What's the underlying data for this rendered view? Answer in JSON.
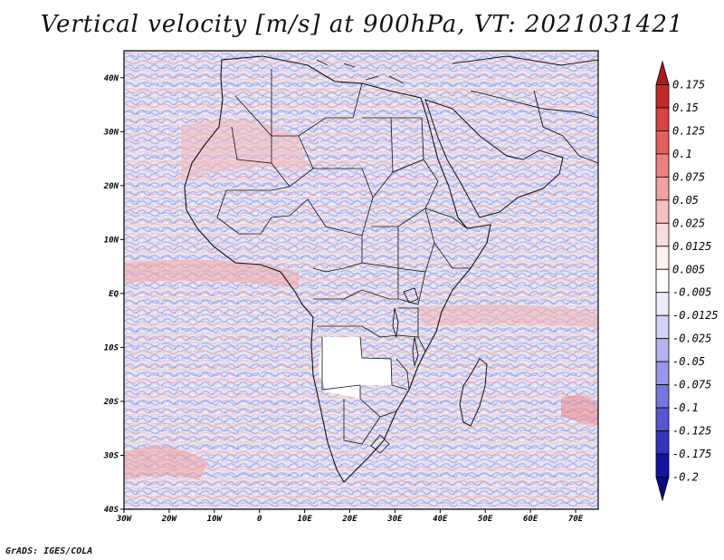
{
  "title": "Vertical velocity [m/s] at 900hPa, VT: 2021031421",
  "credit": "GrADS: IGES/COLA",
  "axes": {
    "lat_labels": [
      "40N",
      "30N",
      "20N",
      "10N",
      "EQ",
      "10S",
      "20S",
      "30S",
      "40S"
    ],
    "lat_values": [
      40,
      30,
      20,
      10,
      0,
      -10,
      -20,
      -30,
      -40
    ],
    "lon_labels": [
      "30W",
      "20W",
      "10W",
      "0",
      "10E",
      "20E",
      "30E",
      "40E",
      "50E",
      "60E",
      "70E"
    ],
    "lon_values": [
      -30,
      -20,
      -10,
      0,
      10,
      20,
      30,
      40,
      50,
      60,
      70
    ],
    "lat_range": [
      -40,
      45
    ],
    "lon_range": [
      -30,
      75
    ]
  },
  "colorbar": {
    "levels": [
      "0.175",
      "0.15",
      "0.125",
      "0.1",
      "0.075",
      "0.05",
      "0.025",
      "0.0125",
      "0.005",
      "-0.005",
      "-0.0125",
      "-0.025",
      "-0.05",
      "-0.075",
      "-0.1",
      "-0.125",
      "-0.175",
      "-0.2"
    ],
    "colors": [
      "#b01818",
      "#c52a2a",
      "#d84444",
      "#e46060",
      "#ec8080",
      "#f2a0a0",
      "#f7c0c0",
      "#fbdcdc",
      "#fdf0f0",
      "#ffffff",
      "#ececfb",
      "#d2d2f6",
      "#b4b4f0",
      "#9696ea",
      "#7676e0",
      "#5656d2",
      "#3434bc",
      "#1414a0",
      "#0a0a80"
    ]
  }
}
